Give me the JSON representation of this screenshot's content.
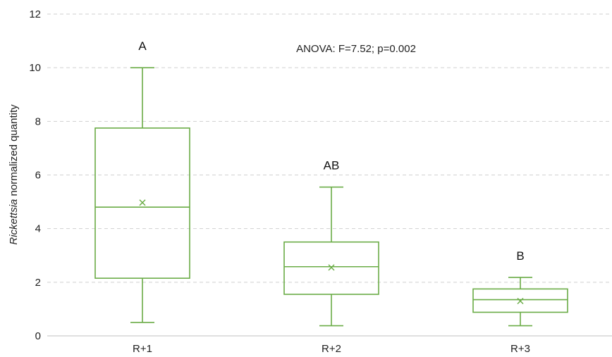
{
  "chart_data": {
    "type": "box",
    "categories": [
      "R+1",
      "R+2",
      "R+3"
    ],
    "boxes": [
      {
        "category": "R+1",
        "min": 0.5,
        "q1": 2.15,
        "median": 4.8,
        "q3": 7.75,
        "max": 10.0,
        "mean": 4.97,
        "group_letter": "A"
      },
      {
        "category": "R+2",
        "min": 0.38,
        "q1": 1.55,
        "median": 2.58,
        "q3": 3.5,
        "max": 5.55,
        "mean": 2.55,
        "group_letter": "AB"
      },
      {
        "category": "R+3",
        "min": 0.38,
        "q1": 0.88,
        "median": 1.35,
        "q3": 1.75,
        "max": 2.18,
        "mean": 1.3,
        "group_letter": "B"
      }
    ],
    "ylabel_italic": "Rickettsia",
    "ylabel_rest": " normalized quantity",
    "ylim": [
      0,
      12
    ],
    "yticks": [
      "0",
      "2",
      "4",
      "6",
      "8",
      "10",
      "12"
    ],
    "annotation": "ANOVA: F=7.52; p=0.002",
    "grid": "horizontal dashed",
    "colors": {
      "box": "#6aac46",
      "grid": "#cfcfcf",
      "axis": "#bfbfbf"
    }
  }
}
